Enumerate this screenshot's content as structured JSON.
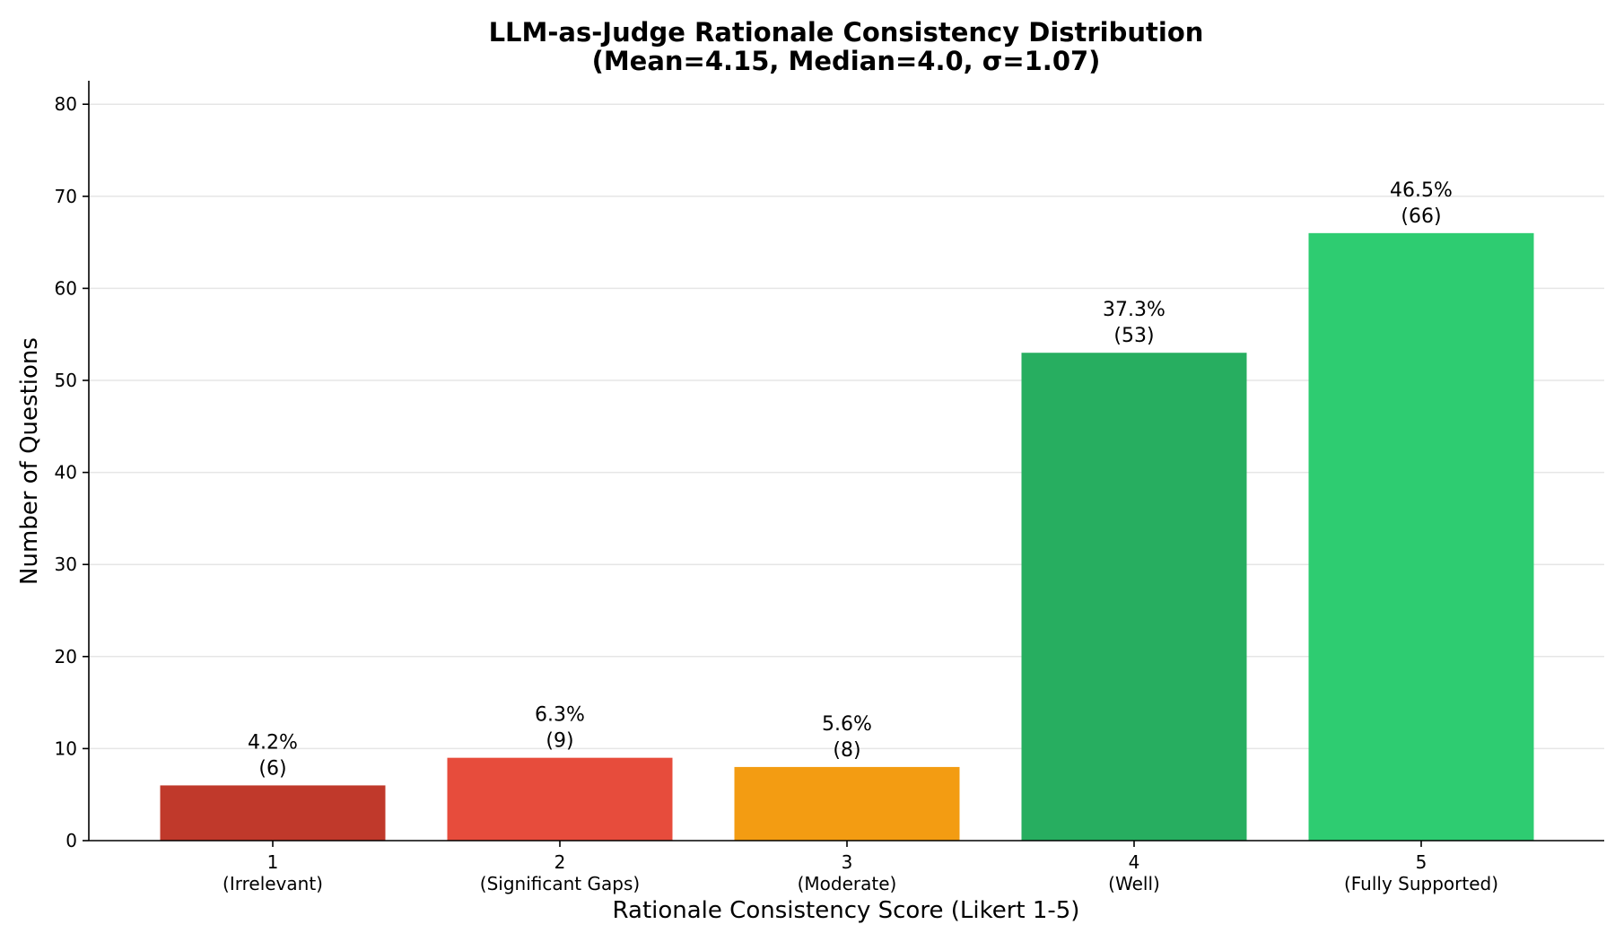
{
  "chart_data": {
    "type": "bar",
    "title": "LLM-as-Judge Rationale Consistency Distribution",
    "subtitle": "(Mean=4.15, Median=4.0, σ=1.07)",
    "xlabel": "Rationale Consistency Score (Likert 1-5)",
    "ylabel": "Number of Questions",
    "categories": [
      "1",
      "2",
      "3",
      "4",
      "5"
    ],
    "category_descriptions": [
      "(Irrelevant)",
      "(Significant Gaps)",
      "(Moderate)",
      "(Well)",
      "(Fully Supported)"
    ],
    "values": [
      6,
      9,
      8,
      53,
      66
    ],
    "percent_labels": [
      "4.2%",
      "6.3%",
      "5.6%",
      "37.3%",
      "46.5%"
    ],
    "count_labels": [
      "(6)",
      "(9)",
      "(8)",
      "(53)",
      "(66)"
    ],
    "colors": [
      "#c0392b",
      "#e74c3c",
      "#f39c12",
      "#27ae60",
      "#2ecc71"
    ],
    "ylim": [
      0,
      82
    ],
    "yticks": [
      0,
      10,
      20,
      30,
      40,
      50,
      60,
      70,
      80
    ],
    "grid": "horizontal",
    "legend": "none"
  }
}
